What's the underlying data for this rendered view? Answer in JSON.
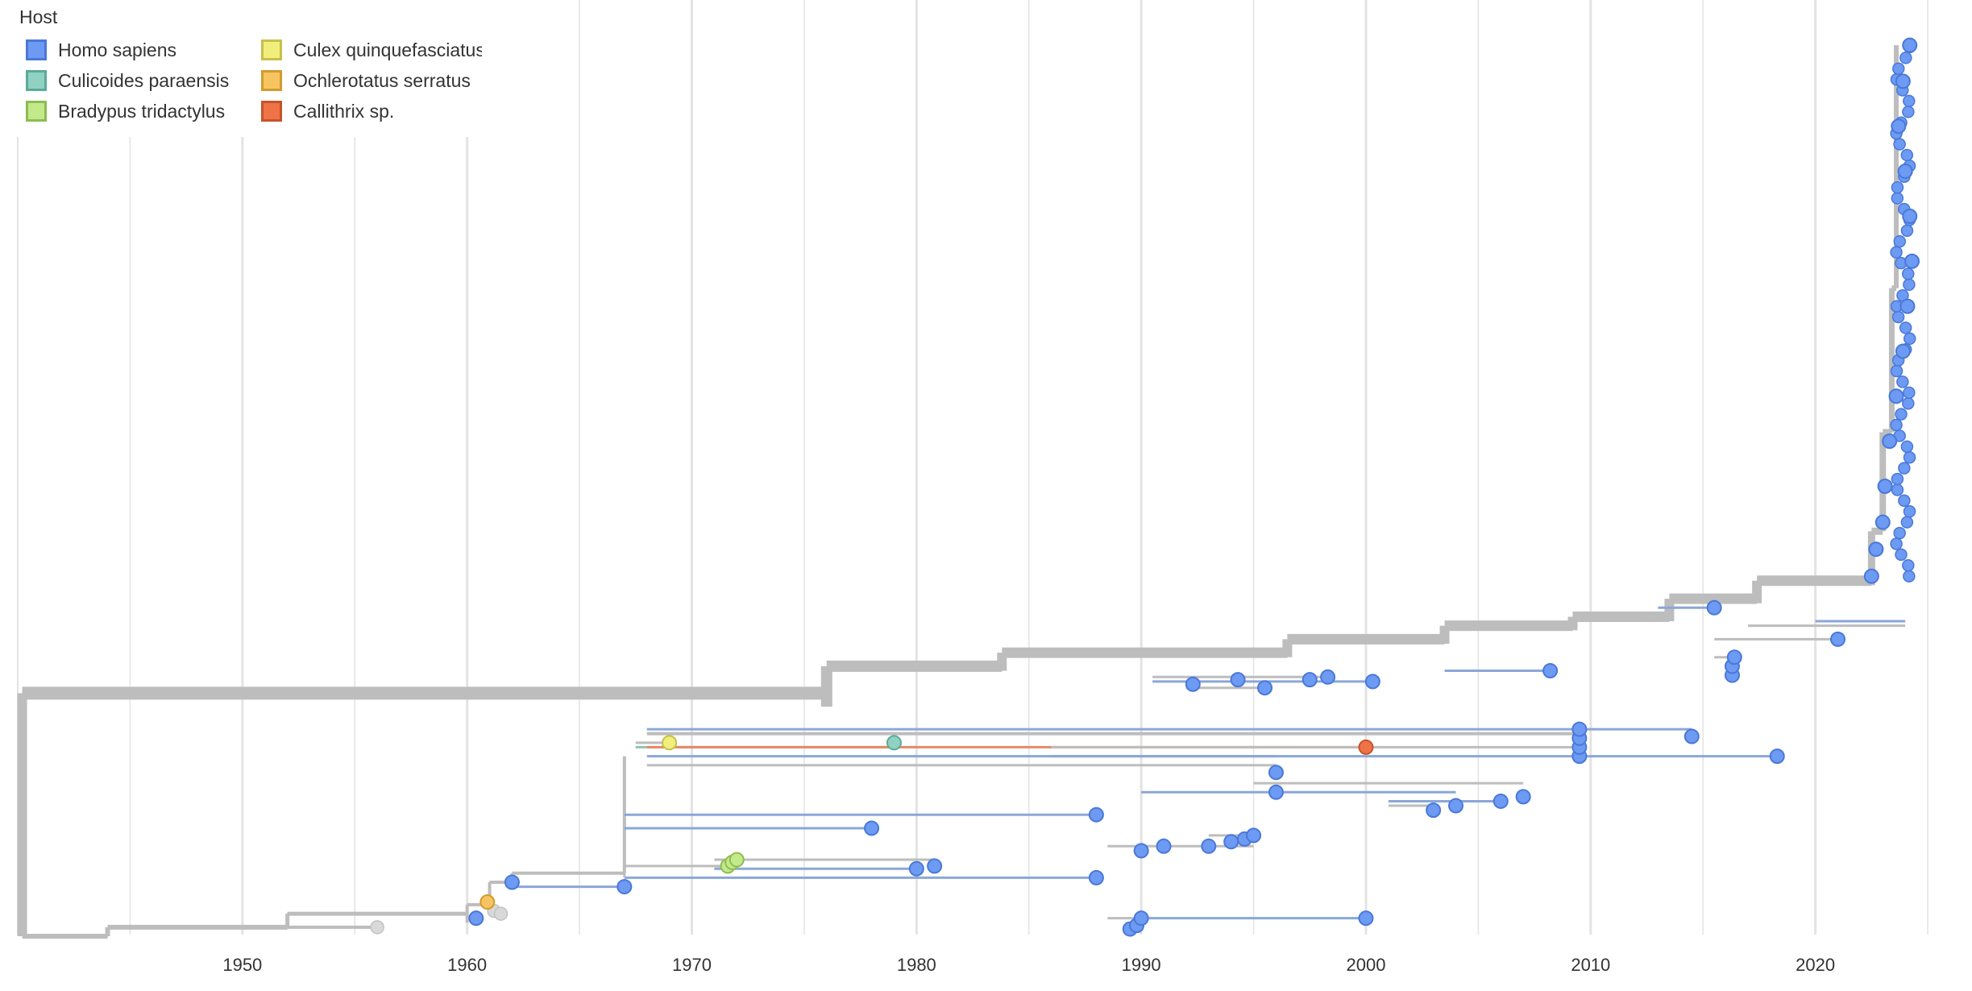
{
  "legend": {
    "title": "Host",
    "items": [
      {
        "label": "Homo sapiens",
        "fill": "#6d9af2",
        "stroke": "#4a78d8"
      },
      {
        "label": "Culicoides paraensis",
        "fill": "#91d1c2",
        "stroke": "#5aab99"
      },
      {
        "label": "Bradypus tridactylus",
        "fill": "#c3ea8a",
        "stroke": "#8ebc52"
      },
      {
        "label": "Culex quinquefasciatus",
        "fill": "#f2ee7d",
        "stroke": "#c6c04a"
      },
      {
        "label": "Ochlerotatus serratus",
        "fill": "#f6c460",
        "stroke": "#d39b2f"
      },
      {
        "label": "Callithrix sp.",
        "fill": "#ef7347",
        "stroke": "#c5532a"
      }
    ]
  },
  "colors": {
    "branch": "#bdbdbd",
    "branch_human": "#8aa7d8",
    "branch_callithrix": "#e58a65",
    "grid": "#e3e3e3",
    "unknown_node": "#d9d9d9"
  },
  "chart_data": {
    "type": "scatter",
    "title": "",
    "xlabel": "",
    "ylabel": "",
    "xlim": [
      1940,
      2025.5
    ],
    "xticks": [
      1950,
      1960,
      1970,
      1980,
      1990,
      2000,
      2010,
      2020
    ],
    "grid": true,
    "legend_position": "top-left",
    "series": [
      {
        "name": "Homo sapiens",
        "points": [
          {
            "x": 1960.4,
            "y": 0.02
          },
          {
            "x": 1962.0,
            "y": 0.06
          },
          {
            "x": 1967.0,
            "y": 0.055
          },
          {
            "x": 1978.0,
            "y": 0.12
          },
          {
            "x": 1980.0,
            "y": 0.075
          },
          {
            "x": 1980.8,
            "y": 0.078
          },
          {
            "x": 1988.0,
            "y": 0.065
          },
          {
            "x": 1988.0,
            "y": 0.135
          },
          {
            "x": 1989.5,
            "y": 0.008
          },
          {
            "x": 1989.8,
            "y": 0.012
          },
          {
            "x": 1990.0,
            "y": 0.02
          },
          {
            "x": 1990.0,
            "y": 0.095
          },
          {
            "x": 1991.0,
            "y": 0.1
          },
          {
            "x": 1992.3,
            "y": 0.28
          },
          {
            "x": 1993.0,
            "y": 0.1
          },
          {
            "x": 1994.0,
            "y": 0.105
          },
          {
            "x": 1994.3,
            "y": 0.285
          },
          {
            "x": 1994.6,
            "y": 0.108
          },
          {
            "x": 1995.0,
            "y": 0.112
          },
          {
            "x": 1995.5,
            "y": 0.276
          },
          {
            "x": 1996.0,
            "y": 0.182
          },
          {
            "x": 1996.0,
            "y": 0.16
          },
          {
            "x": 1997.5,
            "y": 0.285
          },
          {
            "x": 1998.3,
            "y": 0.288
          },
          {
            "x": 2000.0,
            "y": 0.02
          },
          {
            "x": 2000.3,
            "y": 0.283
          },
          {
            "x": 2003.0,
            "y": 0.14
          },
          {
            "x": 2004.0,
            "y": 0.145
          },
          {
            "x": 2006.0,
            "y": 0.15
          },
          {
            "x": 2007.0,
            "y": 0.155
          },
          {
            "x": 2008.2,
            "y": 0.295
          },
          {
            "x": 2009.5,
            "y": 0.2
          },
          {
            "x": 2009.5,
            "y": 0.21
          },
          {
            "x": 2009.5,
            "y": 0.22
          },
          {
            "x": 2009.5,
            "y": 0.23
          },
          {
            "x": 2014.5,
            "y": 0.222
          },
          {
            "x": 2015.5,
            "y": 0.365
          },
          {
            "x": 2016.3,
            "y": 0.29
          },
          {
            "x": 2016.3,
            "y": 0.3
          },
          {
            "x": 2016.4,
            "y": 0.31
          },
          {
            "x": 2018.3,
            "y": 0.2
          },
          {
            "x": 2021.0,
            "y": 0.33
          },
          {
            "x": 2022.5,
            "y": 0.4
          },
          {
            "x": 2022.7,
            "y": 0.43
          },
          {
            "x": 2023.0,
            "y": 0.46
          },
          {
            "x": 2023.1,
            "y": 0.5
          },
          {
            "x": 2023.3,
            "y": 0.55
          },
          {
            "x": 2023.6,
            "y": 0.6
          },
          {
            "x": 2023.9,
            "y": 0.65
          },
          {
            "x": 2024.1,
            "y": 0.7
          },
          {
            "x": 2024.3,
            "y": 0.75
          },
          {
            "x": 2024.2,
            "y": 0.8
          },
          {
            "x": 2024.0,
            "y": 0.85
          },
          {
            "x": 2023.7,
            "y": 0.9
          },
          {
            "x": 2023.9,
            "y": 0.95
          },
          {
            "x": 2024.2,
            "y": 0.99
          }
        ]
      },
      {
        "name": "Culicoides paraensis",
        "points": [
          {
            "x": 1979.0,
            "y": 0.215
          }
        ]
      },
      {
        "name": "Bradypus tridactylus",
        "points": [
          {
            "x": 1971.6,
            "y": 0.078
          },
          {
            "x": 1971.8,
            "y": 0.082
          },
          {
            "x": 1972.0,
            "y": 0.085
          }
        ]
      },
      {
        "name": "Culex quinquefasciatus",
        "points": [
          {
            "x": 1969.0,
            "y": 0.215
          }
        ]
      },
      {
        "name": "Ochlerotatus serratus",
        "points": [
          {
            "x": 1960.9,
            "y": 0.038
          }
        ]
      },
      {
        "name": "Callithrix sp.",
        "points": [
          {
            "x": 2000.0,
            "y": 0.21
          }
        ]
      }
    ]
  }
}
